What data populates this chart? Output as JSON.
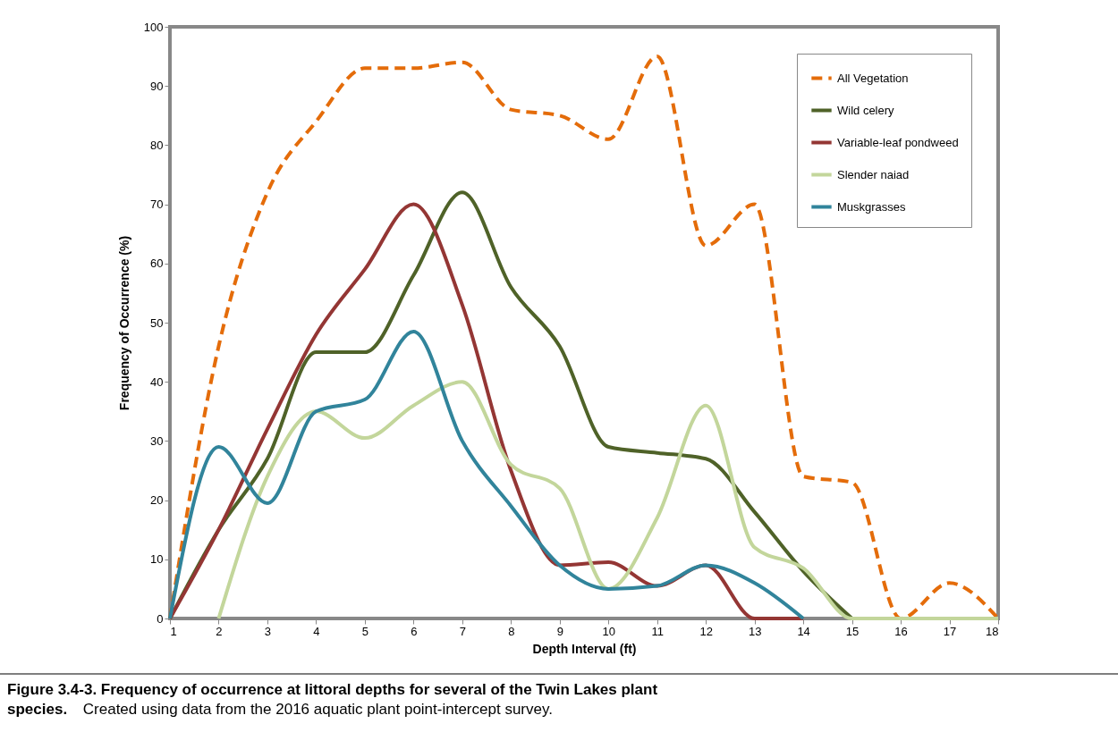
{
  "chart_data": {
    "type": "line",
    "xlabel": "Depth Interval (ft)",
    "ylabel": "Frequency of Occurrence (%)",
    "x": [
      1,
      2,
      3,
      4,
      5,
      6,
      7,
      8,
      9,
      10,
      11,
      12,
      13,
      14,
      15,
      16,
      17,
      18
    ],
    "xlim": [
      1,
      18
    ],
    "xticks": [
      1,
      2,
      3,
      4,
      5,
      6,
      7,
      8,
      9,
      10,
      11,
      12,
      13,
      14,
      15,
      16,
      17,
      18
    ],
    "ylim": [
      0,
      100
    ],
    "yticks": [
      0,
      10,
      20,
      30,
      40,
      50,
      60,
      70,
      80,
      90,
      100
    ],
    "grid": false,
    "legend": "top right",
    "marker": "none",
    "series": [
      {
        "name": "All Vegetation",
        "color": "#e46c0a",
        "line_style": "dashed",
        "values": [
          0,
          46,
          72,
          84,
          93,
          93,
          94,
          86,
          85,
          81,
          95,
          63,
          70,
          24,
          23,
          0,
          6,
          0
        ]
      },
      {
        "name": "Wild celery",
        "color": "#4f6228",
        "line_style": "solid",
        "values": [
          0,
          15,
          27,
          45,
          45,
          58,
          72,
          56,
          46,
          29,
          28,
          27,
          18,
          8,
          0,
          null,
          null,
          null
        ]
      },
      {
        "name": "Variable-leaf pondweed",
        "color": "#943634",
        "line_style": "solid",
        "values": [
          0,
          15,
          32,
          48,
          59,
          70,
          53,
          25,
          9,
          9.5,
          5.5,
          9,
          0,
          0,
          null,
          null,
          null,
          null
        ]
      },
      {
        "name": "Slender naiad",
        "color": "#c3d69b",
        "line_style": "solid",
        "values": [
          null,
          0,
          24,
          35,
          30.5,
          36,
          40,
          26,
          22,
          5,
          17,
          36,
          12,
          8.5,
          0,
          0,
          0,
          0
        ]
      },
      {
        "name": "Muskgrasses",
        "color": "#31849b",
        "line_style": "solid",
        "values": [
          0,
          29,
          19.5,
          35,
          37,
          48.5,
          30,
          19,
          9,
          5,
          5.5,
          9,
          6,
          0,
          null,
          null,
          null,
          null
        ]
      }
    ],
    "annotations": [
      "Figure 3.4-3.  Frequency of occurrence at littoral depths for several of the Twin Lakes plant species.",
      "Created using data from the 2016 aquatic plant point-intercept survey."
    ]
  }
}
